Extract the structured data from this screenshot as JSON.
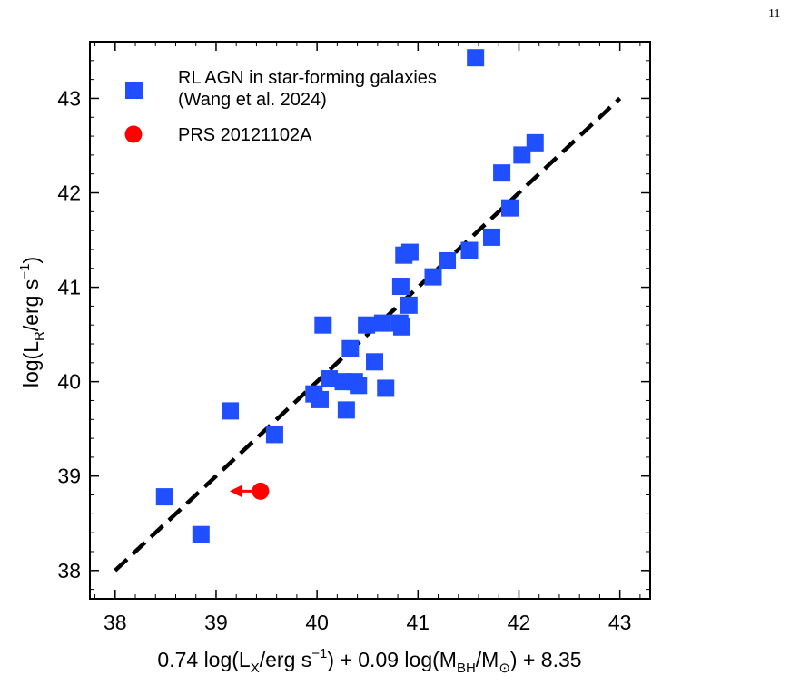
{
  "page": {
    "number": "11"
  },
  "chart_data": {
    "type": "scatter",
    "xlabel": {
      "pre": "0.74 log(L",
      "sub1": "X",
      "mid1": "/erg s",
      "sup1": "−1",
      "mid2": ") + 0.09 log(M",
      "sub2": "BH",
      "mid3": "/M",
      "sub3": "⊙",
      "post": ") + 8.35"
    },
    "ylabel": {
      "pre": "log(L",
      "sub": "R",
      "mid": "/erg s",
      "sup": "−1",
      "post": ")"
    },
    "xlim": [
      37.75,
      43.3
    ],
    "ylim": [
      37.7,
      43.6
    ],
    "xticks": [
      38,
      39,
      40,
      41,
      42,
      43
    ],
    "yticks": [
      38,
      39,
      40,
      41,
      42,
      43
    ],
    "grid": false,
    "legend_position": "top-left",
    "legend": [
      {
        "label_line1": "RL AGN in star-forming galaxies",
        "label_line2": "(Wang et al. 2024)",
        "marker": "square",
        "color": "#1f4fff"
      },
      {
        "label_line1": "PRS 20121102A",
        "label_line2": "",
        "marker": "circle",
        "color": "#ff0000"
      }
    ],
    "series": [
      {
        "name": "RL AGN in star-forming galaxies (Wang et al. 2024)",
        "marker": "square",
        "color": "#1f4fff",
        "points": [
          [
            38.49,
            38.78
          ],
          [
            38.85,
            38.38
          ],
          [
            39.14,
            39.69
          ],
          [
            39.58,
            39.44
          ],
          [
            39.97,
            39.87
          ],
          [
            40.03,
            39.81
          ],
          [
            40.06,
            40.6
          ],
          [
            40.12,
            40.03
          ],
          [
            40.26,
            40.0
          ],
          [
            40.29,
            39.7
          ],
          [
            40.33,
            40.35
          ],
          [
            40.37,
            40.0
          ],
          [
            40.41,
            39.96
          ],
          [
            40.49,
            40.6
          ],
          [
            40.57,
            40.21
          ],
          [
            40.68,
            39.93
          ],
          [
            40.65,
            40.62
          ],
          [
            40.82,
            40.62
          ],
          [
            40.83,
            41.01
          ],
          [
            40.84,
            40.58
          ],
          [
            40.86,
            41.34
          ],
          [
            40.91,
            40.81
          ],
          [
            40.92,
            41.37
          ],
          [
            41.15,
            41.11
          ],
          [
            41.29,
            41.28
          ],
          [
            41.51,
            41.39
          ],
          [
            41.57,
            43.43
          ],
          [
            41.73,
            41.53
          ],
          [
            41.83,
            42.21
          ],
          [
            41.91,
            41.84
          ],
          [
            42.03,
            42.4
          ],
          [
            42.16,
            42.53
          ]
        ]
      },
      {
        "name": "PRS 20121102A",
        "marker": "circle",
        "color": "#ff0000",
        "upper_limit_x": true,
        "points": [
          [
            39.44,
            38.84
          ]
        ]
      }
    ],
    "fit_line": {
      "style": "dashed",
      "color": "#000000",
      "x": [
        38.0,
        43.0
      ],
      "y": [
        38.0,
        43.0
      ]
    }
  }
}
